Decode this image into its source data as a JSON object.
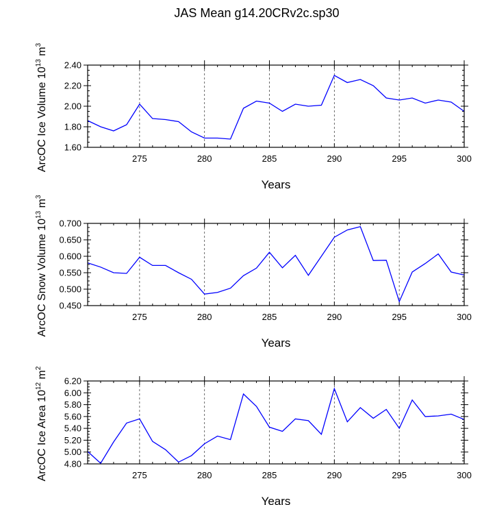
{
  "title": "JAS Mean g14.20CRv2c.sp30",
  "chart_data": [
    {
      "type": "line",
      "xlabel": "Years",
      "ylabel": {
        "text": "ArcOC Ice Volume 10",
        "exp": "13",
        "unit": " m",
        "unit_exp": "3"
      },
      "xlim": [
        271,
        300
      ],
      "ylim": [
        1.6,
        2.4
      ],
      "xticks": [
        275,
        280,
        285,
        290,
        295,
        300
      ],
      "yticks": [
        "1.60",
        "1.80",
        "2.00",
        "2.20",
        "2.40"
      ],
      "series_color": "#0000ff",
      "x": [
        271,
        272,
        273,
        274,
        275,
        276,
        277,
        278,
        279,
        280,
        281,
        282,
        283,
        284,
        285,
        286,
        287,
        288,
        289,
        290,
        291,
        292,
        293,
        294,
        295,
        296,
        297,
        298,
        299,
        300
      ],
      "values": [
        1.86,
        1.8,
        1.76,
        1.82,
        2.02,
        1.88,
        1.87,
        1.85,
        1.75,
        1.69,
        1.69,
        1.68,
        1.98,
        2.05,
        2.03,
        1.95,
        2.02,
        2.0,
        2.01,
        2.3,
        2.23,
        2.26,
        2.2,
        2.08,
        2.06,
        2.08,
        2.03,
        2.06,
        2.04,
        1.95
      ]
    },
    {
      "type": "line",
      "xlabel": "Years",
      "ylabel": {
        "text": "ArcOC Snow Volume 10",
        "exp": "13",
        "unit": " m",
        "unit_exp": "3"
      },
      "xlim": [
        271,
        300
      ],
      "ylim": [
        0.45,
        0.7
      ],
      "xticks": [
        275,
        280,
        285,
        290,
        295,
        300
      ],
      "yticks": [
        "0.450",
        "0.500",
        "0.550",
        "0.600",
        "0.650",
        "0.700"
      ],
      "series_color": "#0000ff",
      "x": [
        271,
        272,
        273,
        274,
        275,
        276,
        277,
        278,
        279,
        280,
        281,
        282,
        283,
        284,
        285,
        286,
        287,
        288,
        289,
        290,
        291,
        292,
        293,
        294,
        295,
        296,
        297,
        298,
        299,
        300
      ],
      "values": [
        0.58,
        0.567,
        0.55,
        0.548,
        0.597,
        0.572,
        0.572,
        0.55,
        0.53,
        0.485,
        0.49,
        0.503,
        0.541,
        0.564,
        0.612,
        0.565,
        0.603,
        0.542,
        0.6,
        0.658,
        0.68,
        0.69,
        0.587,
        0.588,
        0.462,
        0.552,
        0.578,
        0.607,
        0.552,
        0.543
      ]
    },
    {
      "type": "line",
      "xlabel": "Years",
      "ylabel": {
        "text": "ArcOC Ice Area 10",
        "exp": "12",
        "unit": " m",
        "unit_exp": "2"
      },
      "xlim": [
        271,
        300
      ],
      "ylim": [
        4.8,
        6.2
      ],
      "xticks": [
        275,
        280,
        285,
        290,
        295,
        300
      ],
      "yticks": [
        "4.80",
        "5.00",
        "5.20",
        "5.40",
        "5.60",
        "5.80",
        "6.00",
        "6.20"
      ],
      "series_color": "#0000ff",
      "x": [
        271,
        272,
        273,
        274,
        275,
        276,
        277,
        278,
        279,
        280,
        281,
        282,
        283,
        284,
        285,
        286,
        287,
        288,
        289,
        290,
        291,
        292,
        293,
        294,
        295,
        296,
        297,
        298,
        299,
        300
      ],
      "values": [
        5.01,
        4.81,
        5.17,
        5.49,
        5.56,
        5.18,
        5.04,
        4.83,
        4.94,
        5.14,
        5.27,
        5.21,
        5.98,
        5.77,
        5.42,
        5.35,
        5.56,
        5.53,
        5.3,
        6.07,
        5.51,
        5.75,
        5.57,
        5.72,
        5.4,
        5.88,
        5.6,
        5.61,
        5.64,
        5.55
      ]
    }
  ]
}
